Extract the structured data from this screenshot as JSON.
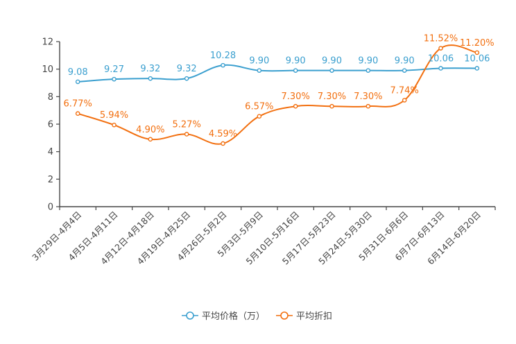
{
  "chart_data": {
    "type": "line",
    "categories": [
      "3月29日-4月4日",
      "4月5日-4月11日",
      "4月12日-4月18日",
      "4月19日-4月25日",
      "4月26日-5月2日",
      "5月3日-5月9日",
      "5月10日-5月16日",
      "5月17日-5月23日",
      "5月24日-5月30日",
      "5月31日-6月6日",
      "6月7日-6月13日",
      "6月14日-6月20日"
    ],
    "ylim": [
      0,
      12
    ],
    "yticks": [
      "0",
      "2",
      "4",
      "6",
      "8",
      "10",
      "12"
    ],
    "legend_position": "bottom-center",
    "series": [
      {
        "name": "平均价格（万）",
        "color": "#3a9fcf",
        "values": [
          9.08,
          9.27,
          9.32,
          9.32,
          10.28,
          9.9,
          9.9,
          9.9,
          9.9,
          9.9,
          10.06,
          10.06
        ],
        "labels": [
          "9.08",
          "9.27",
          "9.32",
          "9.32",
          "10.28",
          "9.90",
          "9.90",
          "9.90",
          "9.90",
          "9.90",
          "10.06",
          "10.06"
        ]
      },
      {
        "name": "平均折扣",
        "color": "#f26f0f",
        "values": [
          6.77,
          5.94,
          4.9,
          5.27,
          4.59,
          6.57,
          7.3,
          7.3,
          7.3,
          7.74,
          11.52,
          11.2
        ],
        "labels": [
          "6.77%",
          "5.94%",
          "4.90%",
          "5.27%",
          "4.59%",
          "6.57%",
          "7.30%",
          "7.30%",
          "7.30%",
          "7.74%",
          "11.52%",
          "11.20%"
        ]
      }
    ]
  }
}
